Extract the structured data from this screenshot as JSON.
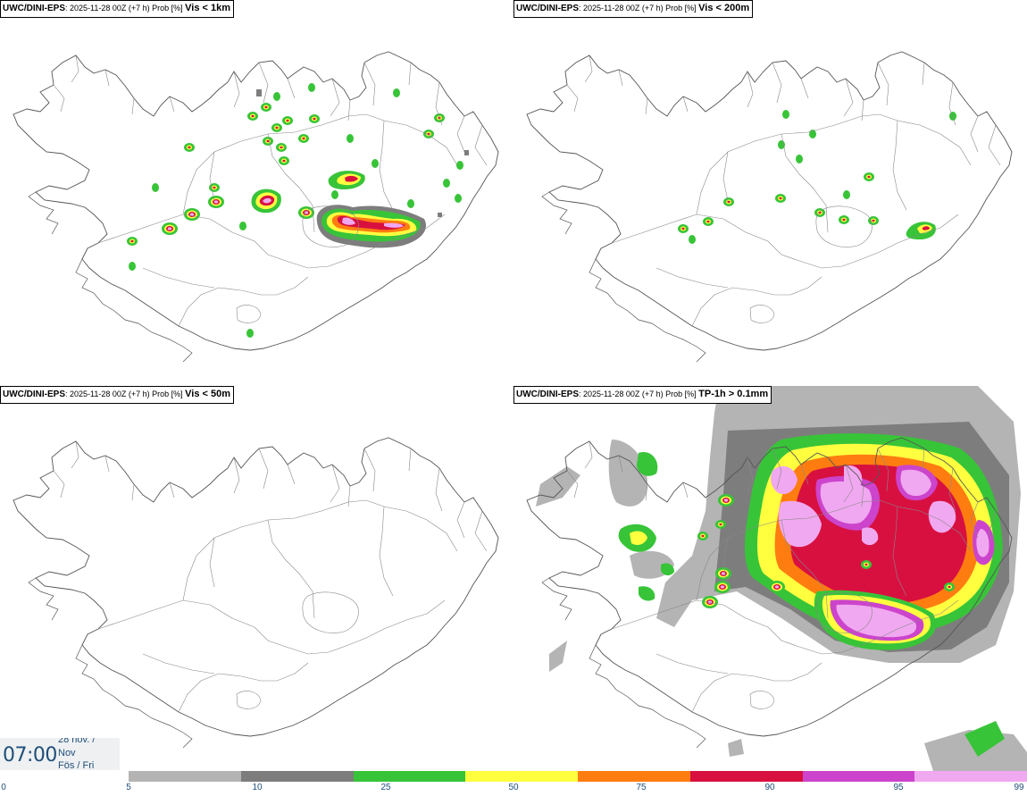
{
  "panels": [
    {
      "model": "UWC/DINI-EPS",
      "info": ": 2025-11-28 00Z (+7 h) Prob [%]",
      "variable": "Vis < 1km"
    },
    {
      "model": "UWC/DINI-EPS",
      "info": ": 2025-11-28 00Z (+7 h) Prob [%]",
      "variable": "Vis < 200m"
    },
    {
      "model": "UWC/DINI-EPS",
      "info": ": 2025-11-28 00Z (+7 h) Prob [%]",
      "variable": "Vis < 50m"
    },
    {
      "model": "UWC/DINI-EPS",
      "info": ": 2025-11-28 00Z (+7 h) Prob [%]",
      "variable": "TP-1h > 0.1mm"
    }
  ],
  "time": {
    "clock": "07:00",
    "date": "28 nóv. /",
    "month": "Nov",
    "weekday": "Fös / Fri"
  },
  "colorbar": {
    "ticks": [
      "0",
      "5",
      "10",
      "25",
      "50",
      "75",
      "90",
      "95",
      "99"
    ],
    "colors": [
      "#b4b4b4",
      "#7d7d7d",
      "#38c438",
      "#ffff40",
      "#ff7d10",
      "#d81040",
      "#cc44cc",
      "#f0a8f0"
    ]
  }
}
